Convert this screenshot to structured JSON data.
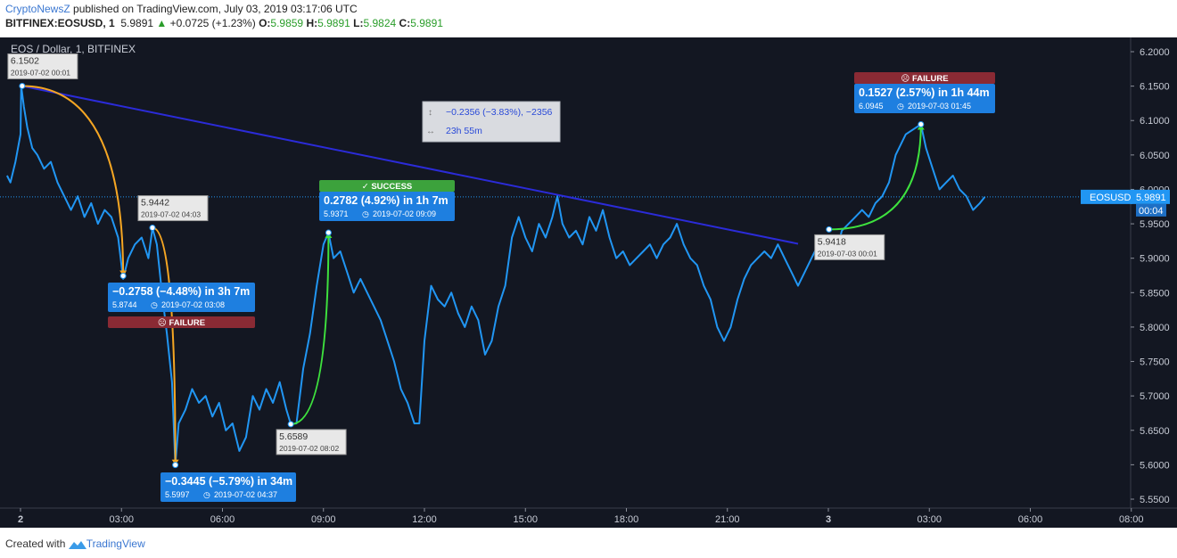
{
  "header": {
    "author": "CryptoNewsZ",
    "published": " published on TradingView.com, July 03, 2019 03:17:06 UTC"
  },
  "symbol_line": {
    "symbol": "BITFINEX:EOSUSD, 1",
    "last": "5.9891",
    "change": "+0.0725 (+1.23%)",
    "o_label": "O:",
    "o": "5.9859",
    "h_label": "H:",
    "h": "5.9891",
    "l_label": "L:",
    "l": "5.9824",
    "c_label": "C:",
    "c": "5.9891"
  },
  "footer": {
    "created": "Created with",
    "brand": "TradingView"
  },
  "colors": {
    "background": "#131722",
    "price_line": "#2196f3",
    "trend_line": "#2b2bd8",
    "orange": "#f5a623",
    "green": "#3ee23e",
    "success": "#3ca23c",
    "failure": "#8a2a34",
    "label_blue": "#1e7fe0",
    "label_gray": "#e8e8e8"
  },
  "chart_data": {
    "type": "line",
    "title": "EOS / Dollar, 1, BITFINEX",
    "xlabel": "",
    "ylabel": "",
    "x_unit": "hours since 2019-07-02 00:00 UTC",
    "ylim": [
      5.535,
      6.215
    ],
    "yticks": [
      "6.2000",
      "6.1500",
      "6.1000",
      "6.0500",
      "6.0000",
      "5.9500",
      "5.9000",
      "5.8500",
      "5.8000",
      "5.7500",
      "5.7000",
      "5.6500",
      "5.6000",
      "5.5500"
    ],
    "xticks": [
      {
        "x": 0,
        "label": "2"
      },
      {
        "x": 3,
        "label": "03:00"
      },
      {
        "x": 6,
        "label": "06:00"
      },
      {
        "x": 9,
        "label": "09:00"
      },
      {
        "x": 12,
        "label": "12:00"
      },
      {
        "x": 15,
        "label": "15:00"
      },
      {
        "x": 18,
        "label": "18:00"
      },
      {
        "x": 21,
        "label": "21:00"
      },
      {
        "x": 24,
        "label": "3"
      },
      {
        "x": 27,
        "label": "03:00"
      },
      {
        "x": 30,
        "label": "06:00"
      },
      {
        "x": 33,
        "label": "08:00"
      }
    ],
    "grid": false,
    "series": [
      {
        "name": "EOSUSD",
        "points": [
          [
            -0.4,
            6.02
          ],
          [
            -0.3,
            6.01
          ],
          [
            -0.15,
            6.04
          ],
          [
            0,
            6.08
          ],
          [
            0.02,
            6.15
          ],
          [
            0.1,
            6.12
          ],
          [
            0.2,
            6.09
          ],
          [
            0.35,
            6.06
          ],
          [
            0.5,
            6.05
          ],
          [
            0.7,
            6.03
          ],
          [
            0.9,
            6.04
          ],
          [
            1.1,
            6.01
          ],
          [
            1.3,
            5.99
          ],
          [
            1.5,
            5.97
          ],
          [
            1.7,
            5.99
          ],
          [
            1.9,
            5.96
          ],
          [
            2.1,
            5.98
          ],
          [
            2.3,
            5.95
          ],
          [
            2.5,
            5.97
          ],
          [
            2.7,
            5.96
          ],
          [
            2.9,
            5.93
          ],
          [
            3.05,
            5.87
          ],
          [
            3.2,
            5.9
          ],
          [
            3.4,
            5.92
          ],
          [
            3.6,
            5.93
          ],
          [
            3.8,
            5.9
          ],
          [
            3.92,
            5.944
          ],
          [
            4.05,
            5.92
          ],
          [
            4.2,
            5.85
          ],
          [
            4.35,
            5.79
          ],
          [
            4.5,
            5.72
          ],
          [
            4.6,
            5.6
          ],
          [
            4.7,
            5.66
          ],
          [
            4.9,
            5.68
          ],
          [
            5.1,
            5.71
          ],
          [
            5.3,
            5.69
          ],
          [
            5.5,
            5.7
          ],
          [
            5.7,
            5.67
          ],
          [
            5.9,
            5.69
          ],
          [
            6.1,
            5.65
          ],
          [
            6.3,
            5.66
          ],
          [
            6.5,
            5.62
          ],
          [
            6.7,
            5.64
          ],
          [
            6.9,
            5.7
          ],
          [
            7.1,
            5.68
          ],
          [
            7.3,
            5.71
          ],
          [
            7.5,
            5.69
          ],
          [
            7.7,
            5.72
          ],
          [
            7.9,
            5.68
          ],
          [
            8.03,
            5.659
          ],
          [
            8.2,
            5.66
          ],
          [
            8.4,
            5.74
          ],
          [
            8.6,
            5.79
          ],
          [
            8.8,
            5.86
          ],
          [
            9,
            5.92
          ],
          [
            9.15,
            5.937
          ],
          [
            9.3,
            5.9
          ],
          [
            9.5,
            5.91
          ],
          [
            9.7,
            5.88
          ],
          [
            9.9,
            5.85
          ],
          [
            10.1,
            5.87
          ],
          [
            10.3,
            5.85
          ],
          [
            10.5,
            5.83
          ],
          [
            10.7,
            5.81
          ],
          [
            10.9,
            5.78
          ],
          [
            11.1,
            5.75
          ],
          [
            11.3,
            5.71
          ],
          [
            11.5,
            5.69
          ],
          [
            11.7,
            5.66
          ],
          [
            11.85,
            5.66
          ],
          [
            12,
            5.78
          ],
          [
            12.2,
            5.86
          ],
          [
            12.4,
            5.84
          ],
          [
            12.6,
            5.83
          ],
          [
            12.8,
            5.85
          ],
          [
            13,
            5.82
          ],
          [
            13.2,
            5.8
          ],
          [
            13.4,
            5.83
          ],
          [
            13.6,
            5.81
          ],
          [
            13.8,
            5.76
          ],
          [
            14,
            5.78
          ],
          [
            14.2,
            5.83
          ],
          [
            14.4,
            5.86
          ],
          [
            14.6,
            5.93
          ],
          [
            14.8,
            5.96
          ],
          [
            15,
            5.93
          ],
          [
            15.2,
            5.91
          ],
          [
            15.4,
            5.95
          ],
          [
            15.6,
            5.93
          ],
          [
            15.8,
            5.96
          ],
          [
            15.95,
            5.99
          ],
          [
            16.1,
            5.95
          ],
          [
            16.3,
            5.93
          ],
          [
            16.5,
            5.94
          ],
          [
            16.7,
            5.92
          ],
          [
            16.9,
            5.96
          ],
          [
            17.1,
            5.94
          ],
          [
            17.3,
            5.97
          ],
          [
            17.5,
            5.93
          ],
          [
            17.7,
            5.9
          ],
          [
            17.9,
            5.91
          ],
          [
            18.1,
            5.89
          ],
          [
            18.3,
            5.9
          ],
          [
            18.5,
            5.91
          ],
          [
            18.7,
            5.92
          ],
          [
            18.9,
            5.9
          ],
          [
            19.1,
            5.92
          ],
          [
            19.3,
            5.93
          ],
          [
            19.5,
            5.95
          ],
          [
            19.7,
            5.92
          ],
          [
            19.9,
            5.9
          ],
          [
            20.1,
            5.89
          ],
          [
            20.3,
            5.86
          ],
          [
            20.5,
            5.84
          ],
          [
            20.7,
            5.8
          ],
          [
            20.9,
            5.78
          ],
          [
            21.1,
            5.8
          ],
          [
            21.3,
            5.84
          ],
          [
            21.5,
            5.87
          ],
          [
            21.7,
            5.89
          ],
          [
            21.9,
            5.9
          ],
          [
            22.1,
            5.91
          ],
          [
            22.3,
            5.9
          ],
          [
            22.5,
            5.92
          ],
          [
            22.7,
            5.9
          ],
          [
            22.9,
            5.88
          ],
          [
            23.1,
            5.86
          ],
          [
            23.3,
            5.88
          ],
          [
            23.5,
            5.9
          ],
          [
            23.7,
            5.92
          ],
          [
            23.9,
            5.91
          ],
          [
            24.02,
            5.93
          ],
          [
            24.2,
            5.9
          ],
          [
            24.4,
            5.94
          ],
          [
            24.6,
            5.95
          ],
          [
            24.8,
            5.96
          ],
          [
            25,
            5.97
          ],
          [
            25.2,
            5.96
          ],
          [
            25.4,
            5.98
          ],
          [
            25.6,
            5.99
          ],
          [
            25.8,
            6.01
          ],
          [
            26,
            6.05
          ],
          [
            26.3,
            6.08
          ],
          [
            26.75,
            6.0945
          ],
          [
            26.9,
            6.06
          ],
          [
            27.1,
            6.03
          ],
          [
            27.3,
            6.0
          ],
          [
            27.5,
            6.01
          ],
          [
            27.7,
            6.02
          ],
          [
            27.9,
            6.0
          ],
          [
            28.1,
            5.99
          ],
          [
            28.3,
            5.97
          ],
          [
            28.5,
            5.98
          ],
          [
            28.65,
            5.9891
          ]
        ]
      }
    ],
    "trend_line": {
      "from": [
        0.05,
        6.1502
      ],
      "to": [
        23.1,
        5.921
      ]
    },
    "price_tag": {
      "label": "EOSUSD",
      "value": "5.9891",
      "countdown": "00:04"
    },
    "measure_box": {
      "line1": "−0.2356 (−3.83%), −2356",
      "line2": "23h 55m"
    },
    "points": [
      {
        "id": "p1",
        "x": 0.05,
        "y": 6.1502,
        "value": "6.1502",
        "time": "2019-07-02 00:01"
      },
      {
        "id": "p2",
        "x": 3.05,
        "y": 5.8744,
        "value": "5.8744",
        "time": "2019-07-02 03:08"
      },
      {
        "id": "p3",
        "x": 3.92,
        "y": 5.9442,
        "value": "5.9442",
        "time": "2019-07-02 04:03"
      },
      {
        "id": "p4",
        "x": 4.6,
        "y": 5.5997,
        "value": "5.5997",
        "time": "2019-07-02 04:37"
      },
      {
        "id": "p5",
        "x": 8.03,
        "y": 5.6589,
        "value": "5.6589",
        "time": "2019-07-02 08:02"
      },
      {
        "id": "p6",
        "x": 9.15,
        "y": 5.9371,
        "value": "5.9371",
        "time": "2019-07-02 09:09"
      },
      {
        "id": "p7",
        "x": 24.02,
        "y": 5.9418,
        "value": "5.9418",
        "time": "2019-07-03 00:01"
      },
      {
        "id": "p8",
        "x": 26.75,
        "y": 6.0945,
        "value": "6.0945",
        "time": "2019-07-03 01:45"
      }
    ],
    "forecasts": [
      {
        "from": "p1",
        "to": "p2",
        "color": "orange",
        "change": "−0.2758 (−4.48%) in 3h 7m",
        "end_value": "5.8744",
        "end_time": "2019-07-02  03:08",
        "status": "FAILURE"
      },
      {
        "from": "p3",
        "to": "p4",
        "color": "orange",
        "change": "−0.3445 (−5.79%) in 34m",
        "end_value": "5.5997",
        "end_time": "2019-07-02  04:37",
        "status": ""
      },
      {
        "from": "p5",
        "to": "p6",
        "color": "green",
        "change": "0.2782 (4.92%) in 1h 7m",
        "end_value": "5.9371",
        "end_time": "2019-07-02  09:09",
        "status": "SUCCESS"
      },
      {
        "from": "p7",
        "to": "p8",
        "color": "green",
        "change": "0.1527 (2.57%) in 1h 44m",
        "end_value": "6.0945",
        "end_time": "2019-07-03  01:45",
        "status": "FAILURE"
      }
    ]
  }
}
